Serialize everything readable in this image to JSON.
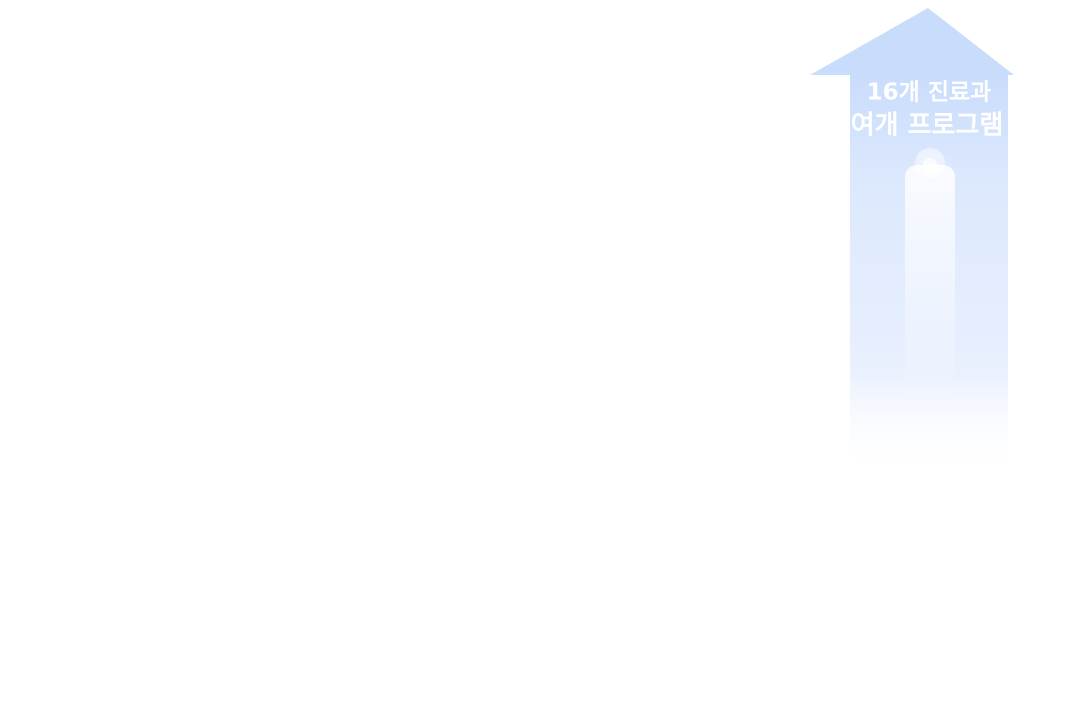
{
  "arrow": {
    "lines": [
      "16개 진료과",
      "여개 프로그램"
    ]
  }
}
